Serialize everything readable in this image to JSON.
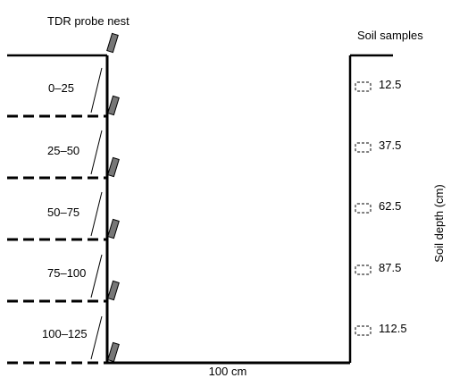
{
  "labels": {
    "probe_nest": "TDR probe nest",
    "soil_samples": "Soil samples",
    "soil_depth": "Soil depth (cm)",
    "width": "100 cm"
  },
  "layers": [
    {
      "range": "0–25",
      "sample_depth": "12.5"
    },
    {
      "range": "25–50",
      "sample_depth": "37.5"
    },
    {
      "range": "50–75",
      "sample_depth": "62.5"
    },
    {
      "range": "75–100",
      "sample_depth": "87.5"
    },
    {
      "range": "100–125",
      "sample_depth": "112.5"
    }
  ],
  "colors": {
    "line": "#000000",
    "probe_fill": "#777777",
    "sample_fill": "#ffffff"
  }
}
